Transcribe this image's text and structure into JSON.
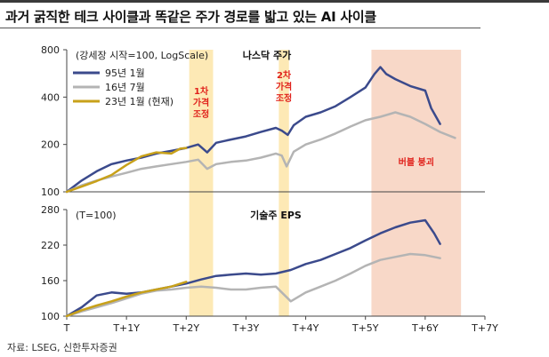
{
  "title": "과거 굵직한 테크 사이클과 똑같은 주가 경로를 밟고 있는 AI 사이클",
  "source": "자료: LSEG, 신한투자증권",
  "colors": {
    "series_95": "#3b4a8c",
    "series_16": "#b4b4b4",
    "series_23": "#c8a11a",
    "correction_band": "#fde9b5",
    "bubble_band": "#f8d8c8",
    "annotation_text": "#e0211b"
  },
  "chart_data": [
    {
      "type": "line",
      "title": "나스닥 주가",
      "subtitle": "(강세장 시작=100, LogScale)",
      "log_scale": true,
      "ylim": [
        100,
        800
      ],
      "yticks": [
        100,
        200,
        400,
        800
      ],
      "xlim": [
        0,
        7
      ],
      "xticks": [
        "T",
        "T+1Y",
        "T+2Y",
        "T+3Y",
        "T+4Y",
        "T+5Y",
        "T+6Y",
        "T+7Y"
      ],
      "legend_position": "top-left",
      "legend": [
        "95년 1월",
        "16년 7월",
        "23년 1월 (현재)"
      ],
      "bands": [
        {
          "x0": 2.05,
          "x1": 2.45,
          "label": "1차\n가격\n조정"
        },
        {
          "x0": 3.55,
          "x1": 3.72,
          "label": "2차\n가격\n조정"
        },
        {
          "x0": 5.1,
          "x1": 6.6,
          "label": "버블 붕괴"
        }
      ],
      "series": [
        {
          "name": "95년 1월",
          "x": [
            0,
            0.25,
            0.5,
            0.75,
            1.0,
            1.25,
            1.5,
            1.75,
            2.0,
            2.2,
            2.35,
            2.5,
            2.75,
            3.0,
            3.25,
            3.5,
            3.6,
            3.7,
            3.8,
            4.0,
            4.25,
            4.5,
            4.75,
            5.0,
            5.15,
            5.25,
            5.35,
            5.5,
            5.75,
            6.0,
            6.1,
            6.25
          ],
          "values": [
            100,
            118,
            135,
            150,
            158,
            165,
            175,
            182,
            190,
            200,
            178,
            205,
            215,
            225,
            240,
            255,
            245,
            230,
            265,
            300,
            320,
            350,
            400,
            460,
            560,
            620,
            560,
            520,
            470,
            440,
            340,
            270
          ]
        },
        {
          "name": "16년 7월",
          "x": [
            0,
            0.25,
            0.5,
            0.75,
            1.0,
            1.25,
            1.5,
            1.75,
            2.0,
            2.2,
            2.35,
            2.5,
            2.75,
            3.0,
            3.25,
            3.5,
            3.6,
            3.68,
            3.8,
            4.0,
            4.25,
            4.5,
            4.75,
            5.0,
            5.25,
            5.5,
            5.75,
            6.0,
            6.25,
            6.5
          ],
          "values": [
            100,
            110,
            118,
            125,
            132,
            140,
            145,
            150,
            155,
            160,
            140,
            150,
            155,
            158,
            165,
            175,
            170,
            145,
            180,
            200,
            215,
            235,
            260,
            285,
            300,
            320,
            300,
            270,
            240,
            220
          ]
        },
        {
          "name": "23년 1월 (현재)",
          "x": [
            0,
            0.25,
            0.5,
            0.75,
            1.0,
            1.25,
            1.5,
            1.75,
            1.9,
            2.0
          ],
          "values": [
            100,
            108,
            117,
            128,
            148,
            168,
            178,
            175,
            188,
            190
          ]
        }
      ]
    },
    {
      "type": "line",
      "title": "기술주 EPS",
      "subtitle": "(T=100)",
      "ylim": [
        100,
        280
      ],
      "yticks": [
        100,
        160,
        220,
        280
      ],
      "xlim": [
        0,
        7
      ],
      "xticks": [
        "T",
        "T+1Y",
        "T+2Y",
        "T+3Y",
        "T+4Y",
        "T+5Y",
        "T+6Y",
        "T+7Y"
      ],
      "series": [
        {
          "name": "95년 1월",
          "x": [
            0,
            0.25,
            0.5,
            0.75,
            1.0,
            1.25,
            1.5,
            1.75,
            2.0,
            2.25,
            2.5,
            2.75,
            3.0,
            3.25,
            3.5,
            3.75,
            4.0,
            4.25,
            4.5,
            4.75,
            5.0,
            5.25,
            5.5,
            5.75,
            6.0,
            6.15,
            6.25
          ],
          "values": [
            100,
            115,
            135,
            140,
            138,
            140,
            145,
            150,
            155,
            162,
            168,
            170,
            172,
            170,
            172,
            178,
            188,
            195,
            205,
            215,
            228,
            240,
            250,
            258,
            262,
            240,
            222
          ]
        },
        {
          "name": "16년 7월",
          "x": [
            0,
            0.25,
            0.5,
            0.75,
            1.0,
            1.25,
            1.5,
            1.75,
            2.0,
            2.25,
            2.5,
            2.75,
            3.0,
            3.25,
            3.5,
            3.65,
            3.75,
            4.0,
            4.25,
            4.5,
            4.75,
            5.0,
            5.25,
            5.5,
            5.75,
            6.0,
            6.25
          ],
          "values": [
            100,
            108,
            115,
            122,
            130,
            138,
            143,
            145,
            148,
            150,
            148,
            145,
            145,
            148,
            150,
            135,
            125,
            140,
            150,
            160,
            172,
            185,
            195,
            200,
            205,
            203,
            198
          ]
        },
        {
          "name": "23년 1월 (현재)",
          "x": [
            0,
            0.25,
            0.5,
            0.75,
            1.0,
            1.25,
            1.5,
            1.75,
            2.0
          ],
          "values": [
            100,
            110,
            118,
            125,
            133,
            140,
            145,
            150,
            158
          ]
        }
      ]
    }
  ]
}
